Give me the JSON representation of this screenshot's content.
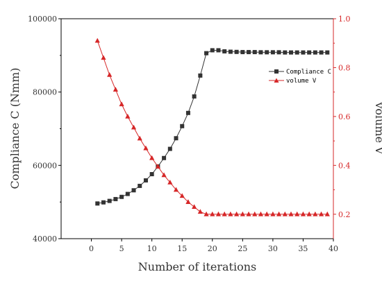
{
  "chart_data": {
    "type": "line",
    "xlabel": "Number of iterations",
    "ylabel": "Compliance C (Nmm)",
    "y2label": "volume V",
    "xlim": [
      -5,
      40
    ],
    "ylim": [
      40000,
      100000
    ],
    "y2lim": [
      0.1,
      1.0
    ],
    "x_ticks": [
      "0",
      "5",
      "10",
      "15",
      "20",
      "25",
      "30",
      "35",
      "40"
    ],
    "y_ticks": [
      "40000",
      "60000",
      "80000",
      "100000"
    ],
    "y2_ticks": [
      "0.2",
      "0.4",
      "0.6",
      "0.8",
      "1.0"
    ],
    "grid": false,
    "legend_position": "top-right",
    "x": [
      1,
      2,
      3,
      4,
      5,
      6,
      7,
      8,
      9,
      10,
      11,
      12,
      13,
      14,
      15,
      16,
      17,
      18,
      19,
      20,
      21,
      22,
      23,
      24,
      25,
      26,
      27,
      28,
      29,
      30,
      31,
      32,
      33,
      34,
      35,
      36,
      37,
      38,
      39
    ],
    "series": [
      {
        "name": "Compliance C",
        "axis": "left",
        "color": "#333333",
        "marker": "square",
        "values": [
          49600,
          49900,
          50300,
          50800,
          51400,
          52200,
          53200,
          54400,
          55900,
          57600,
          59700,
          62000,
          64500,
          67400,
          70700,
          74300,
          78800,
          84500,
          90600,
          91400,
          91400,
          91100,
          91000,
          90950,
          90900,
          90900,
          90900,
          90850,
          90850,
          90850,
          90850,
          90800,
          90800,
          90800,
          90800,
          90800,
          90800,
          90800,
          90800
        ]
      },
      {
        "name": "volume V",
        "axis": "right",
        "color": "#d62728",
        "marker": "triangle",
        "values": [
          0.91,
          0.84,
          0.77,
          0.71,
          0.65,
          0.6,
          0.555,
          0.51,
          0.47,
          0.43,
          0.395,
          0.36,
          0.33,
          0.3,
          0.275,
          0.25,
          0.23,
          0.21,
          0.2,
          0.2,
          0.2,
          0.2,
          0.2,
          0.2,
          0.2,
          0.2,
          0.2,
          0.2,
          0.2,
          0.2,
          0.2,
          0.2,
          0.2,
          0.2,
          0.2,
          0.2,
          0.2,
          0.2,
          0.2
        ]
      }
    ]
  }
}
